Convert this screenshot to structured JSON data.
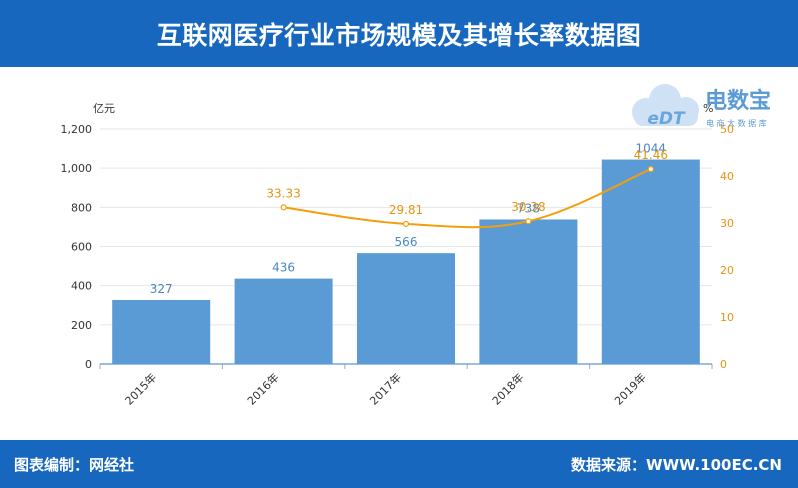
{
  "title": "互联网医疗行业市场规模及其增长率数据图",
  "footer": {
    "left": "图表编制：网经社",
    "right": "数据来源：WWW.100EC.CN"
  },
  "logo": {
    "name": "电数宝",
    "sub": "电 商 大 数 据 库",
    "mark": "eDT"
  },
  "chart_data": {
    "type": "bar",
    "categories": [
      "2015年",
      "2016年",
      "2017年",
      "2018年",
      "2019年"
    ],
    "series": [
      {
        "name": "",
        "type": "bar",
        "axis": "left",
        "values": [
          327,
          436,
          566,
          738,
          1044
        ]
      },
      {
        "name": "",
        "type": "line",
        "axis": "right",
        "values": [
          null,
          33.33,
          29.81,
          30.38,
          41.46
        ]
      }
    ],
    "ylabel": "亿元",
    "y2label": "%",
    "ylim": [
      0,
      1200
    ],
    "y2lim": [
      0,
      50
    ],
    "yticks": [
      "0",
      "200",
      "400",
      "600",
      "800",
      "1,000",
      "1,200"
    ],
    "y2ticks": [
      "0",
      "10",
      "20",
      "30",
      "40",
      "50"
    ],
    "bar_labels": [
      "327",
      "436",
      "566",
      "738",
      "1044"
    ],
    "line_labels": [
      "",
      "33.33",
      "29.81",
      "30.38",
      "41.46"
    ],
    "grid": true,
    "colors": {
      "bar": "#5b9bd5",
      "line": "#f59e0b",
      "bar_label": "#4a86c5",
      "line_label": "#e8940c"
    }
  }
}
